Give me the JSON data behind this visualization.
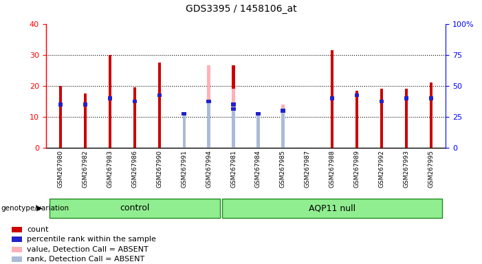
{
  "title": "GDS3395 / 1458106_at",
  "samples": [
    "GSM267980",
    "GSM267982",
    "GSM267983",
    "GSM267986",
    "GSM267990",
    "GSM267991",
    "GSM267994",
    "GSM267981",
    "GSM267984",
    "GSM267985",
    "GSM267987",
    "GSM267988",
    "GSM267989",
    "GSM267992",
    "GSM267993",
    "GSM267995"
  ],
  "n_control": 7,
  "n_aqp": 9,
  "count_values": [
    20,
    17.5,
    30,
    19.5,
    27.5,
    0,
    0,
    26.5,
    0,
    0,
    0,
    31.5,
    18.5,
    19,
    19,
    21
  ],
  "percentile_values": [
    14,
    14,
    16,
    15,
    17,
    0,
    0,
    14,
    0,
    0,
    0,
    16,
    17,
    15,
    16,
    16
  ],
  "absent_value_values": [
    0,
    0,
    0,
    0,
    0,
    9,
    26.5,
    19,
    9.5,
    14,
    0,
    0,
    0,
    0,
    0,
    0
  ],
  "absent_rank_values": [
    0,
    0,
    0,
    0,
    0,
    11,
    15,
    12.5,
    11,
    12,
    0,
    0,
    0,
    0,
    0,
    0
  ],
  "ylim_left": [
    0,
    40
  ],
  "ylim_right": [
    0,
    100
  ],
  "yticks_left": [
    0,
    10,
    20,
    30,
    40
  ],
  "yticks_right": [
    0,
    25,
    50,
    75,
    100
  ],
  "color_count": "#cc0000",
  "color_percentile": "#2222cc",
  "color_absent_value": "#ffb0b8",
  "color_absent_rank": "#aabbd8",
  "bar_width": 0.12,
  "background_plot": "#ffffff",
  "background_xtick": "#d8d8d8",
  "background_group": "#90ee90",
  "legend_items": [
    "count",
    "percentile rank within the sample",
    "value, Detection Call = ABSENT",
    "rank, Detection Call = ABSENT"
  ],
  "legend_colors": [
    "#cc0000",
    "#2222cc",
    "#ffb0b8",
    "#aabbd8"
  ],
  "right_ytick_labels": [
    "0",
    "25",
    "50",
    "75",
    "100%"
  ]
}
